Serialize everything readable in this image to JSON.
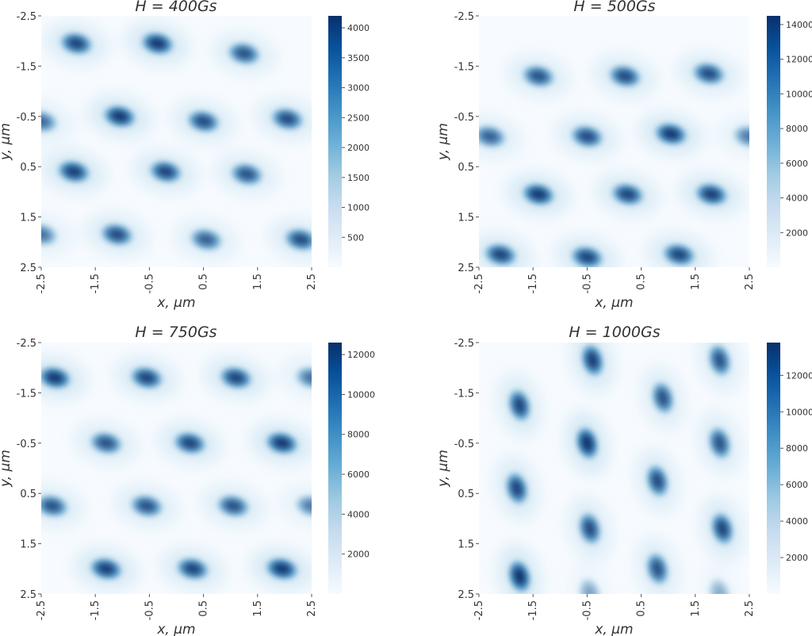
{
  "chart_data": [
    {
      "type": "heatmap",
      "title": "H = 400Gs",
      "xlabel": "x, μm",
      "ylabel": "y, μm",
      "x_ticks": [
        "-2.5",
        "-1.5",
        "-0.5",
        "0.5",
        "1.5",
        "2.5"
      ],
      "y_ticks": [
        "-2.5",
        "-1.5",
        "-0.5",
        "0.5",
        "1.5",
        "2.5"
      ],
      "xlim": [
        -2.5,
        2.5
      ],
      "ylim": [
        -2.5,
        2.5
      ],
      "y_axis_inverted": true,
      "colormap": "Blues",
      "colorbar": {
        "min": 0,
        "max": 4200,
        "ticks": [
          500,
          1000,
          1500,
          2000,
          2500,
          3000,
          3500,
          4000
        ]
      },
      "vortex_centers": [
        {
          "x": -1.85,
          "y": -1.95,
          "intensity": 0.85
        },
        {
          "x": -0.35,
          "y": -1.95,
          "intensity": 0.95
        },
        {
          "x": 1.25,
          "y": -1.75,
          "intensity": 0.75
        },
        {
          "x": -2.5,
          "y": -0.4,
          "intensity": 0.6
        },
        {
          "x": -1.05,
          "y": -0.5,
          "intensity": 0.95
        },
        {
          "x": 0.5,
          "y": -0.4,
          "intensity": 0.8
        },
        {
          "x": 2.05,
          "y": -0.45,
          "intensity": 0.8
        },
        {
          "x": -1.9,
          "y": 0.6,
          "intensity": 0.9
        },
        {
          "x": -0.2,
          "y": 0.6,
          "intensity": 0.85
        },
        {
          "x": 1.3,
          "y": 0.65,
          "intensity": 0.75
        },
        {
          "x": -2.5,
          "y": 1.85,
          "intensity": 0.55
        },
        {
          "x": -1.1,
          "y": 1.85,
          "intensity": 0.8
        },
        {
          "x": 0.55,
          "y": 1.95,
          "intensity": 0.65
        },
        {
          "x": 2.3,
          "y": 1.95,
          "intensity": 0.8
        }
      ]
    },
    {
      "type": "heatmap",
      "title": "H = 500Gs",
      "xlabel": "x, μm",
      "ylabel": "y, μm",
      "x_ticks": [
        "-2.5",
        "-1.5",
        "-0.5",
        "0.5",
        "1.5",
        "2.5"
      ],
      "y_ticks": [
        "-2.5",
        "-1.5",
        "-0.5",
        "0.5",
        "1.5",
        "2.5"
      ],
      "xlim": [
        -2.5,
        2.5
      ],
      "ylim": [
        -2.5,
        2.5
      ],
      "y_axis_inverted": true,
      "colormap": "Blues",
      "colorbar": {
        "min": 0,
        "max": 14500,
        "ticks": [
          2000,
          4000,
          6000,
          8000,
          10000,
          12000,
          14000
        ]
      },
      "vortex_centers": [
        {
          "x": -1.4,
          "y": -1.3,
          "intensity": 0.75
        },
        {
          "x": 0.2,
          "y": -1.3,
          "intensity": 0.8
        },
        {
          "x": 1.75,
          "y": -1.35,
          "intensity": 0.8
        },
        {
          "x": -2.3,
          "y": -0.1,
          "intensity": 0.65
        },
        {
          "x": -0.5,
          "y": -0.1,
          "intensity": 0.8
        },
        {
          "x": 1.05,
          "y": -0.15,
          "intensity": 0.95
        },
        {
          "x": 2.5,
          "y": -0.1,
          "intensity": 0.5
        },
        {
          "x": -1.4,
          "y": 1.05,
          "intensity": 0.95
        },
        {
          "x": 0.25,
          "y": 1.05,
          "intensity": 0.85
        },
        {
          "x": 1.8,
          "y": 1.05,
          "intensity": 0.9
        },
        {
          "x": -2.1,
          "y": 2.25,
          "intensity": 0.85
        },
        {
          "x": -0.5,
          "y": 2.3,
          "intensity": 0.85
        },
        {
          "x": 1.2,
          "y": 2.25,
          "intensity": 0.85
        }
      ]
    },
    {
      "type": "heatmap",
      "title": "H = 750Gs",
      "xlabel": "x, μm",
      "ylabel": "y, μm",
      "x_ticks": [
        "-2.5",
        "-1.5",
        "-0.5",
        "0.5",
        "1.5",
        "2.5"
      ],
      "y_ticks": [
        "-2.5",
        "-1.5",
        "-0.5",
        "0.5",
        "1.5",
        "2.5"
      ],
      "xlim": [
        -2.5,
        2.5
      ],
      "ylim": [
        -2.5,
        2.5
      ],
      "y_axis_inverted": true,
      "colormap": "Blues",
      "colorbar": {
        "min": 0,
        "max": 12600,
        "ticks": [
          2000,
          4000,
          6000,
          8000,
          10000,
          12000
        ]
      },
      "vortex_centers": [
        {
          "x": -2.25,
          "y": -1.8,
          "intensity": 0.95
        },
        {
          "x": -0.55,
          "y": -1.8,
          "intensity": 0.85
        },
        {
          "x": 1.1,
          "y": -1.8,
          "intensity": 0.85
        },
        {
          "x": 2.5,
          "y": -1.8,
          "intensity": 0.55
        },
        {
          "x": -1.3,
          "y": -0.5,
          "intensity": 0.75
        },
        {
          "x": 0.25,
          "y": -0.5,
          "intensity": 0.85
        },
        {
          "x": 1.95,
          "y": -0.5,
          "intensity": 0.95
        },
        {
          "x": -2.3,
          "y": 0.75,
          "intensity": 0.75
        },
        {
          "x": -0.55,
          "y": 0.75,
          "intensity": 0.75
        },
        {
          "x": 1.05,
          "y": 0.75,
          "intensity": 0.75
        },
        {
          "x": 2.5,
          "y": 0.75,
          "intensity": 0.5
        },
        {
          "x": -1.3,
          "y": 2.0,
          "intensity": 0.9
        },
        {
          "x": 0.3,
          "y": 2.0,
          "intensity": 0.85
        },
        {
          "x": 1.95,
          "y": 2.0,
          "intensity": 0.95
        }
      ]
    },
    {
      "type": "heatmap",
      "title": "H = 1000Gs",
      "xlabel": "x, μm",
      "ylabel": "y, μm",
      "x_ticks": [
        "-2.5",
        "-1.5",
        "-0.5",
        "0.5",
        "1.5",
        "2.5"
      ],
      "y_ticks": [
        "-2.5",
        "-1.5",
        "-0.5",
        "0.5",
        "1.5",
        "2.5"
      ],
      "xlim": [
        -2.5,
        2.5
      ],
      "ylim": [
        -2.5,
        2.5
      ],
      "y_axis_inverted": true,
      "colormap": "Blues",
      "colorbar": {
        "min": 0,
        "max": 13800,
        "ticks": [
          2000,
          4000,
          6000,
          8000,
          10000,
          12000
        ]
      },
      "vortex_centers": [
        {
          "x": -0.4,
          "y": -2.15,
          "intensity": 0.9
        },
        {
          "x": 1.95,
          "y": -2.15,
          "intensity": 0.75
        },
        {
          "x": -1.75,
          "y": -1.25,
          "intensity": 0.85
        },
        {
          "x": 0.9,
          "y": -1.4,
          "intensity": 0.75
        },
        {
          "x": -0.5,
          "y": -0.5,
          "intensity": 1.0
        },
        {
          "x": 1.95,
          "y": -0.5,
          "intensity": 0.75
        },
        {
          "x": -1.8,
          "y": 0.4,
          "intensity": 0.85
        },
        {
          "x": 0.8,
          "y": 0.25,
          "intensity": 0.8
        },
        {
          "x": -0.45,
          "y": 1.2,
          "intensity": 0.8
        },
        {
          "x": 2.0,
          "y": 1.2,
          "intensity": 0.85
        },
        {
          "x": -1.75,
          "y": 2.15,
          "intensity": 1.0
        },
        {
          "x": 0.8,
          "y": 2.0,
          "intensity": 0.75
        },
        {
          "x": -0.45,
          "y": 2.5,
          "intensity": 0.3
        },
        {
          "x": 1.95,
          "y": 2.5,
          "intensity": 0.25
        }
      ]
    }
  ]
}
